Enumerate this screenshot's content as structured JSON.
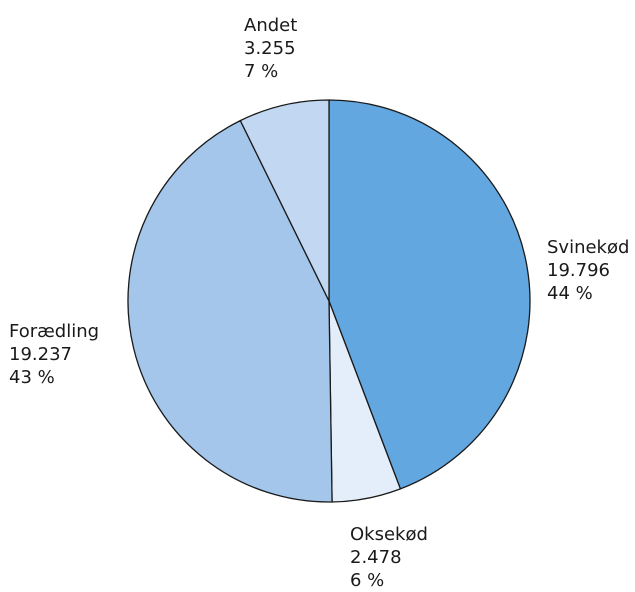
{
  "chart_data": {
    "type": "pie",
    "slices": [
      {
        "name": "Svinekød",
        "value": 19796,
        "value_label": "19.796",
        "pct_label": "44 %",
        "color": "#62a7e0"
      },
      {
        "name": "Oksekød",
        "value": 2478,
        "value_label": "2.478",
        "pct_label": "6 %",
        "color": "#e3eefa"
      },
      {
        "name": "Forædling",
        "value": 19237,
        "value_label": "19.237",
        "pct_label": "43 %",
        "color": "#a3c6ea"
      },
      {
        "name": "Andet",
        "value": 3255,
        "value_label": "3.255",
        "pct_label": "7 %",
        "color": "#c2d7f1"
      }
    ],
    "start": "top",
    "direction": "clockwise",
    "legend": "none"
  }
}
